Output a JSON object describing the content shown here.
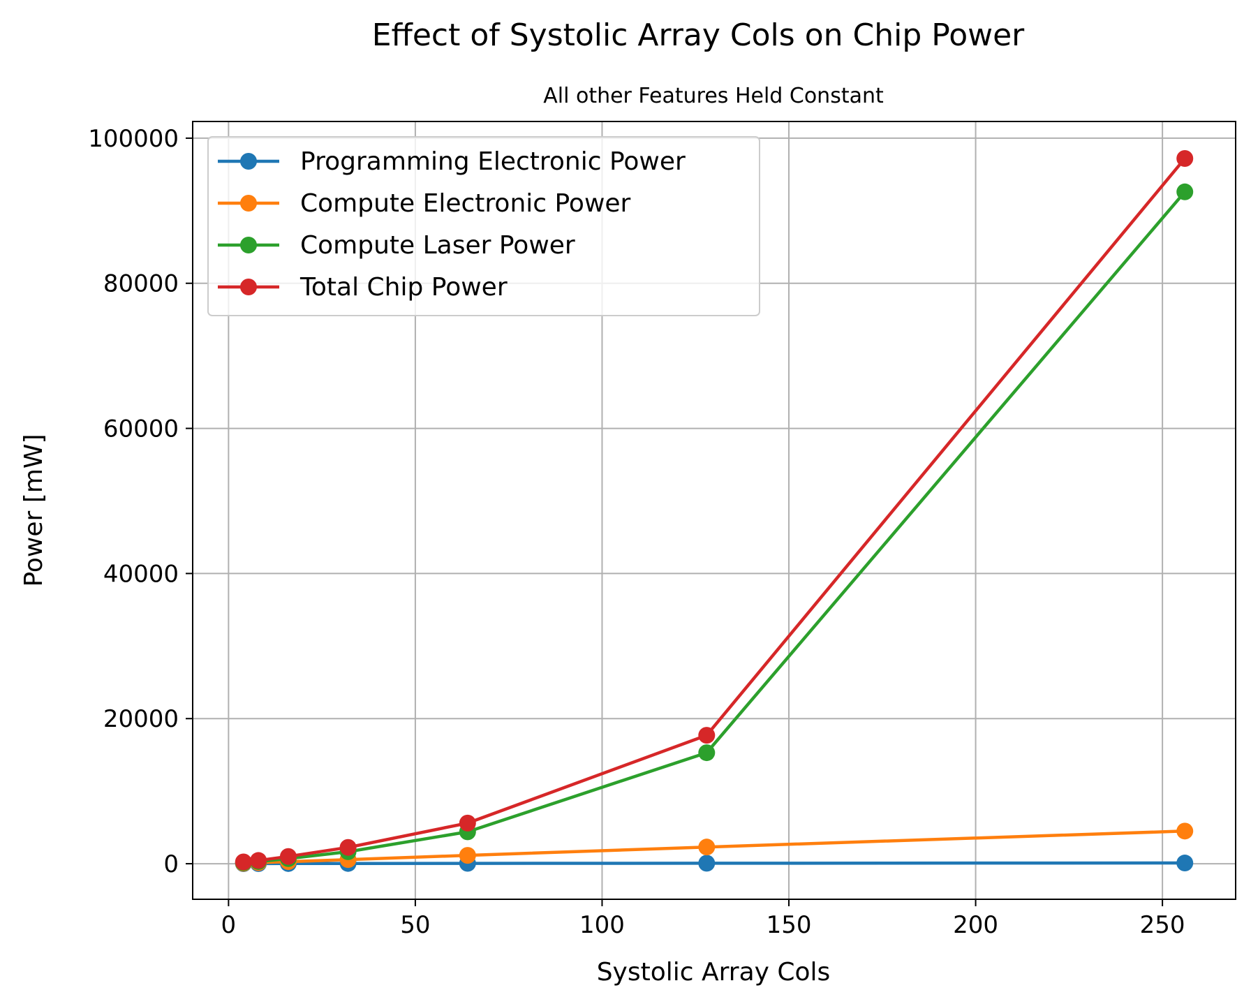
{
  "chart_data": {
    "type": "line",
    "title": "Effect of Systolic Array Cols on Chip Power",
    "subtitle": "All other Features Held Constant",
    "xlabel": "Systolic Array Cols",
    "ylabel": "Power [mW]",
    "xlim": [
      -9.6,
      269.6
    ],
    "ylim": [
      -4900,
      102300
    ],
    "xticks": [
      0,
      50,
      100,
      150,
      200,
      250
    ],
    "xtick_labels": [
      "0",
      "50",
      "100",
      "150",
      "200",
      "250"
    ],
    "yticks": [
      0,
      20000,
      40000,
      60000,
      80000,
      100000
    ],
    "ytick_labels": [
      "0",
      "20000",
      "40000",
      "60000",
      "80000",
      "100000"
    ],
    "grid": true,
    "legend_position": "top-left",
    "x": [
      4,
      8,
      16,
      32,
      64,
      128,
      256
    ],
    "series": [
      {
        "name": "Programming Electronic Power",
        "color": "#1f77b4",
        "values": [
          10,
          15,
          25,
          35,
          50,
          70,
          100
        ]
      },
      {
        "name": "Compute Electronic Power",
        "color": "#ff7f0e",
        "values": [
          70,
          150,
          290,
          570,
          1150,
          2300,
          4500
        ]
      },
      {
        "name": "Compute Laser Power",
        "color": "#2ca02c",
        "values": [
          150,
          300,
          700,
          1650,
          4400,
          15300,
          92600
        ]
      },
      {
        "name": "Total Chip Power",
        "color": "#d62728",
        "values": [
          250,
          450,
          1000,
          2250,
          5600,
          17700,
          97200
        ]
      }
    ]
  }
}
